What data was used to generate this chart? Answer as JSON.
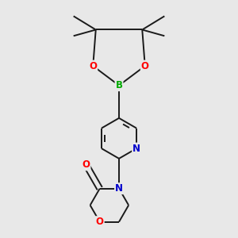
{
  "background_color": "#e8e8e8",
  "bond_color": "#1a1a1a",
  "atom_colors": {
    "O": "#ff0000",
    "N": "#0000cc",
    "B": "#00aa00",
    "C": "#1a1a1a"
  },
  "bond_width": 1.4,
  "figsize": [
    3.0,
    3.0
  ],
  "dpi": 100
}
